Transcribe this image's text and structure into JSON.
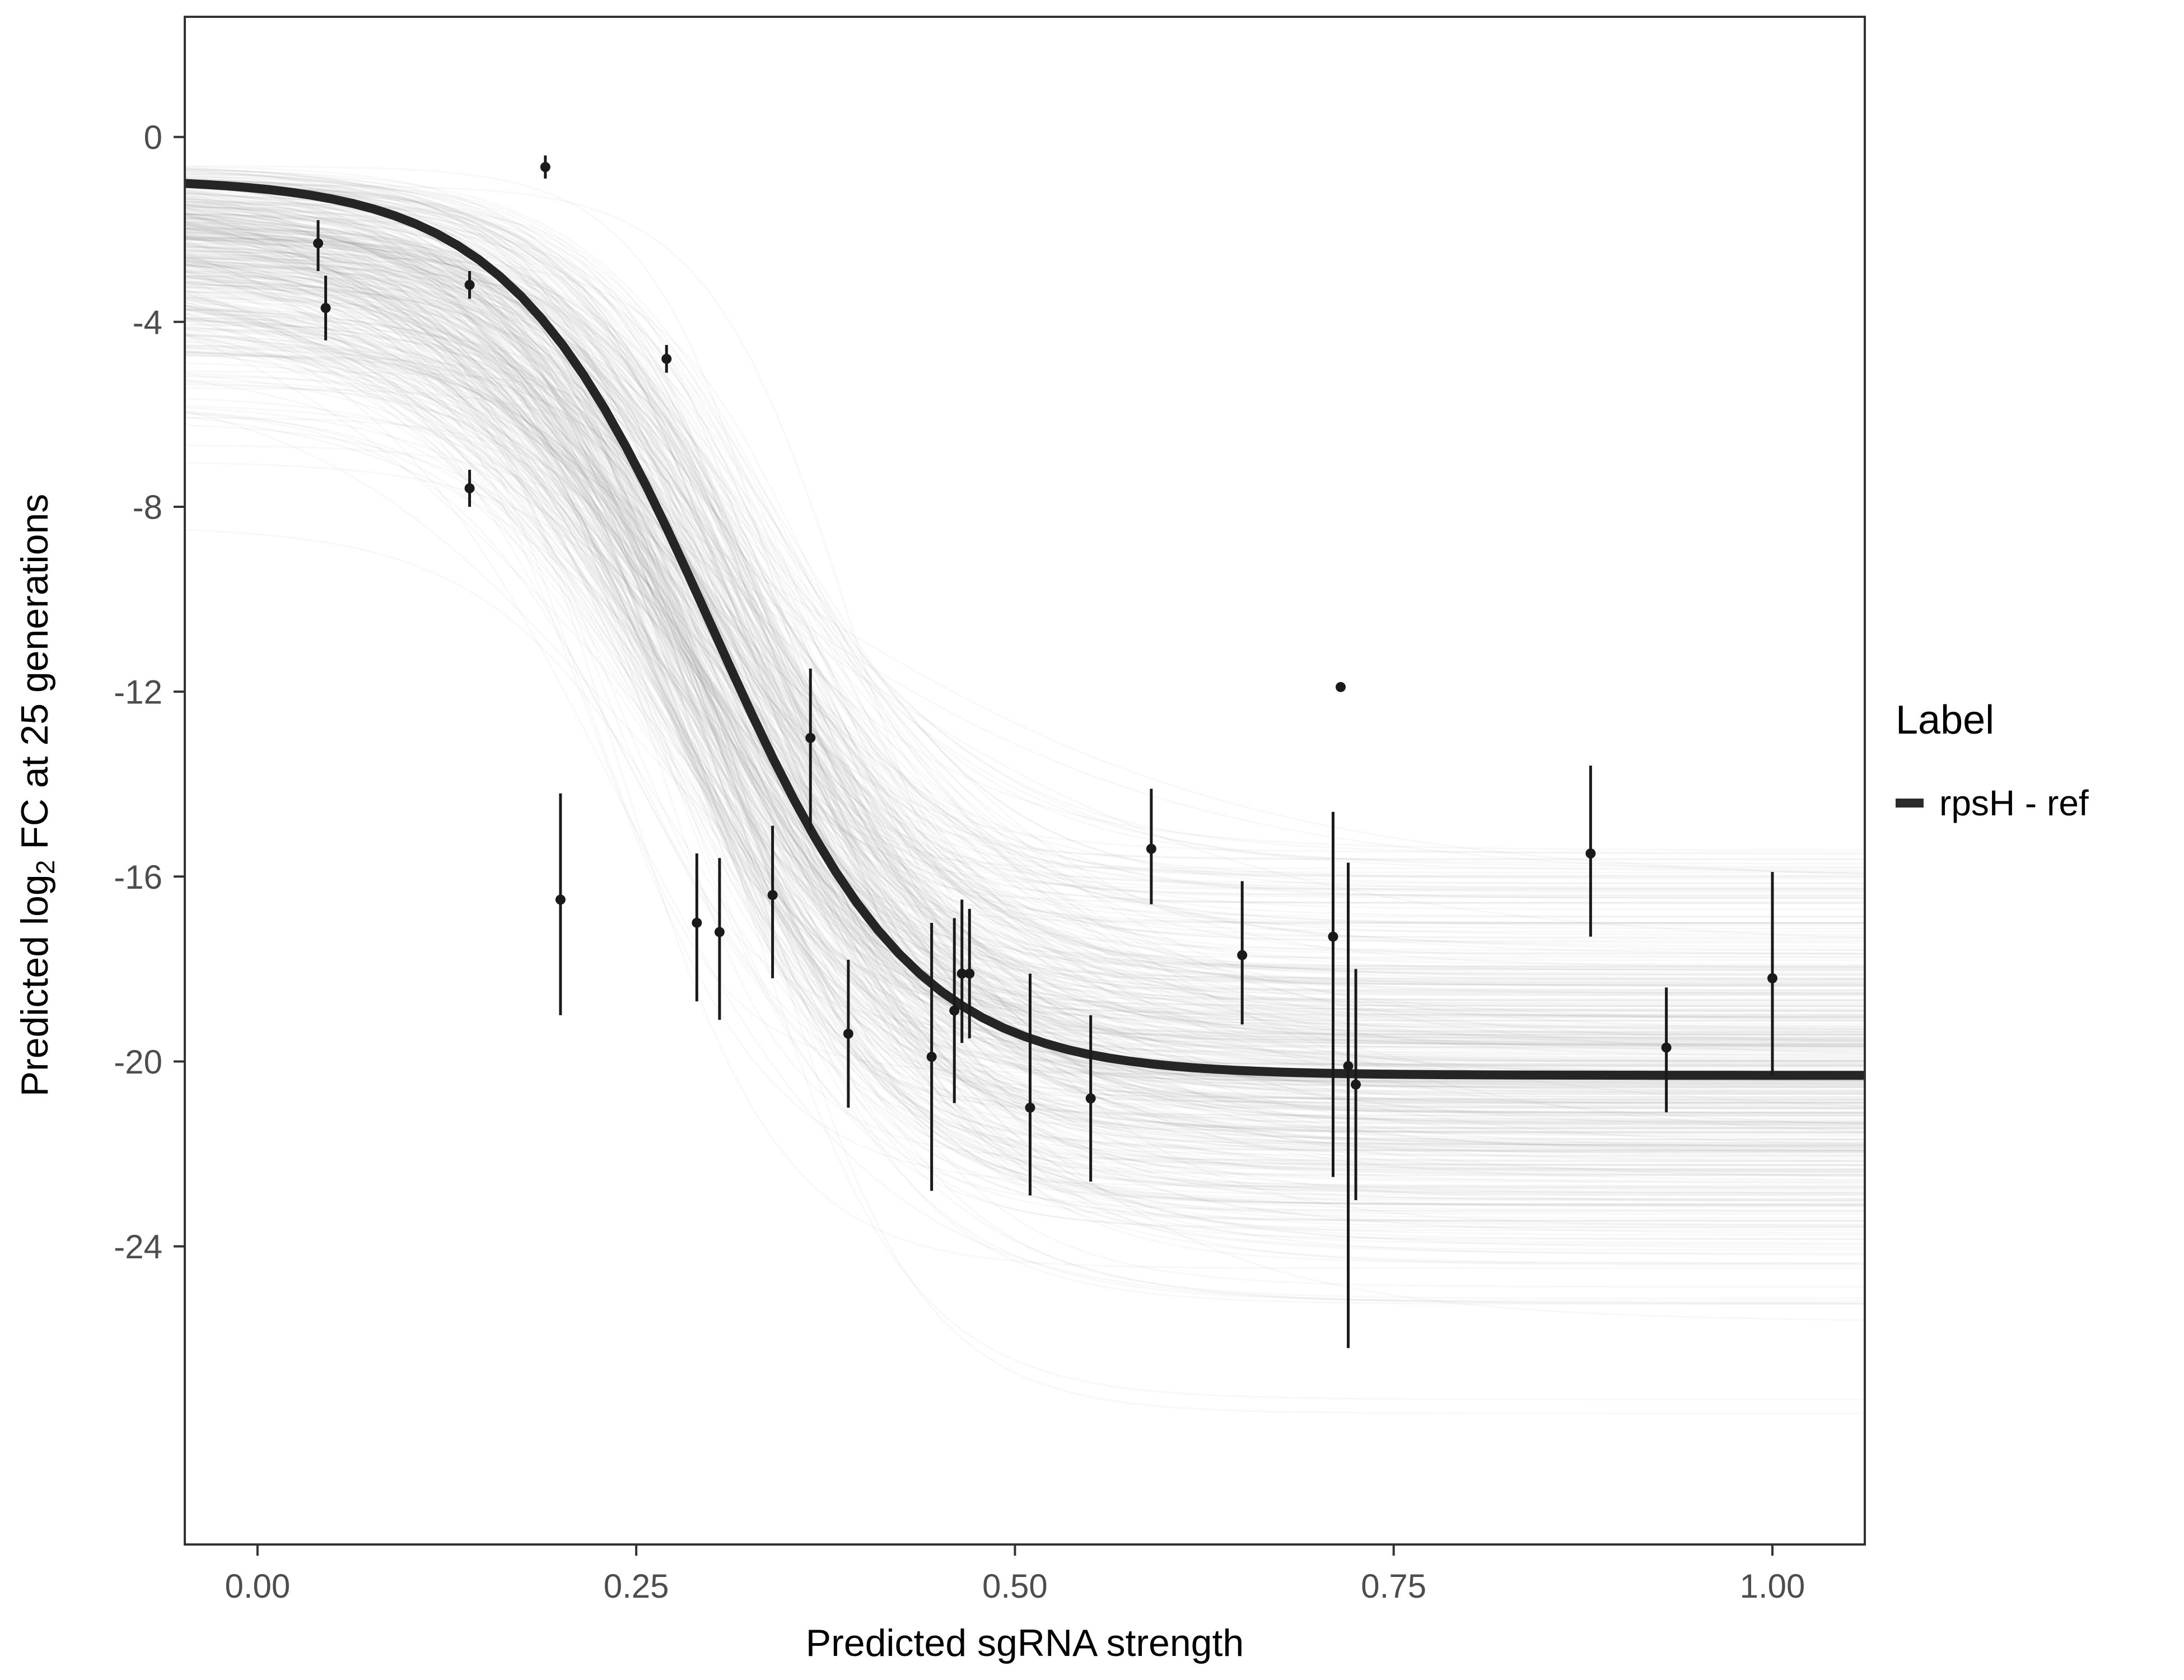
{
  "figure": {
    "x_axis_title": "Predicted sgRNA strength",
    "y_axis_title_parts": {
      "pre": "Predicted  log",
      "sub": "2",
      "post": " FC at 25 generations"
    },
    "legend": {
      "title": "Label",
      "entries": [
        {
          "label": "rpsH - ref",
          "color": "#2b2b2b"
        }
      ]
    }
  },
  "chart_data": {
    "type": "scatter",
    "title": "",
    "xlabel": "Predicted sgRNA strength",
    "ylabel": "Predicted log2 FC at 25 generations",
    "xlim": [
      -0.048,
      1.061
    ],
    "ylim": [
      -30.45,
      2.6
    ],
    "grid": false,
    "legend_position": "right",
    "x_ticks": [
      {
        "v": 0.0,
        "label": "0.00"
      },
      {
        "v": 0.25,
        "label": "0.25"
      },
      {
        "v": 0.5,
        "label": "0.50"
      },
      {
        "v": 0.75,
        "label": "0.75"
      },
      {
        "v": 1.0,
        "label": "1.00"
      }
    ],
    "y_ticks": [
      {
        "v": 0,
        "label": "0"
      },
      {
        "v": -4,
        "label": "-4"
      },
      {
        "v": -8,
        "label": "-8"
      },
      {
        "v": -12,
        "label": "-12"
      },
      {
        "v": -16,
        "label": "-16"
      },
      {
        "v": -20,
        "label": "-20"
      },
      {
        "v": -24,
        "label": "-24"
      }
    ],
    "points": [
      {
        "x": 0.04,
        "y": -2.3,
        "ymin": -2.9,
        "ymax": -1.8
      },
      {
        "x": 0.045,
        "y": -3.7,
        "ymin": -4.4,
        "ymax": -3.0
      },
      {
        "x": 0.14,
        "y": -3.2,
        "ymin": -3.5,
        "ymax": -2.9
      },
      {
        "x": 0.14,
        "y": -7.6,
        "ymin": -8.0,
        "ymax": -7.2
      },
      {
        "x": 0.19,
        "y": -0.65,
        "ymin": -0.9,
        "ymax": -0.4
      },
      {
        "x": 0.2,
        "y": -16.5,
        "ymin": -19.0,
        "ymax": -14.2
      },
      {
        "x": 0.27,
        "y": -4.8,
        "ymin": -5.1,
        "ymax": -4.5
      },
      {
        "x": 0.29,
        "y": -17.0,
        "ymin": -18.7,
        "ymax": -15.5
      },
      {
        "x": 0.305,
        "y": -17.2,
        "ymin": -19.1,
        "ymax": -15.6
      },
      {
        "x": 0.34,
        "y": -16.4,
        "ymin": -18.2,
        "ymax": -14.9
      },
      {
        "x": 0.365,
        "y": -13.0,
        "ymin": -15.0,
        "ymax": -11.5
      },
      {
        "x": 0.39,
        "y": -19.4,
        "ymin": -21.0,
        "ymax": -17.8
      },
      {
        "x": 0.445,
        "y": -19.9,
        "ymin": -22.8,
        "ymax": -17.0
      },
      {
        "x": 0.46,
        "y": -18.9,
        "ymin": -20.9,
        "ymax": -16.9
      },
      {
        "x": 0.465,
        "y": -18.1,
        "ymin": -19.6,
        "ymax": -16.5
      },
      {
        "x": 0.47,
        "y": -18.1,
        "ymin": -19.5,
        "ymax": -16.7
      },
      {
        "x": 0.51,
        "y": -21.0,
        "ymin": -22.9,
        "ymax": -18.1
      },
      {
        "x": 0.55,
        "y": -20.8,
        "ymin": -22.6,
        "ymax": -19.0
      },
      {
        "x": 0.59,
        "y": -15.4,
        "ymin": -16.6,
        "ymax": -14.1
      },
      {
        "x": 0.65,
        "y": -17.7,
        "ymin": -19.2,
        "ymax": -16.1
      },
      {
        "x": 0.71,
        "y": -17.3,
        "ymin": -22.5,
        "ymax": -14.6
      },
      {
        "x": 0.715,
        "y": -11.9,
        "ymin": -12.0,
        "ymax": -11.8
      },
      {
        "x": 0.72,
        "y": -20.1,
        "ymin": -26.2,
        "ymax": -15.7
      },
      {
        "x": 0.725,
        "y": -20.5,
        "ymin": -23.0,
        "ymax": -18.0
      },
      {
        "x": 0.88,
        "y": -15.5,
        "ymin": -17.3,
        "ymax": -13.6
      },
      {
        "x": 0.93,
        "y": -19.7,
        "ymin": -21.1,
        "ymax": -18.4
      },
      {
        "x": 1.0,
        "y": -18.2,
        "ymin": -20.3,
        "ymax": -15.9
      }
    ],
    "fit_curve": {
      "top": -0.9,
      "plateau": -20.3,
      "midpoint": 0.3,
      "steepness": 15,
      "color": "#252525",
      "width": 16
    },
    "posterior_draws": {
      "count": 430,
      "seed": 42,
      "color": "#7d7d7d",
      "opacity": 0.055,
      "stroke_width": 3,
      "top_base": -0.6,
      "top_halfnormal_sd": 2.3,
      "plateau_mean": -20.4,
      "plateau_sd": 2.2,
      "midpoint_mean": 0.3,
      "midpoint_sd": 0.035,
      "steepness_mean": 15,
      "steepness_sd": 3.5
    },
    "point_color": "#1a1a1a",
    "point_radius": 9,
    "errorbar_width": 5,
    "panel_border_color": "#333333",
    "tick_label_color": "#4d4d4d"
  }
}
